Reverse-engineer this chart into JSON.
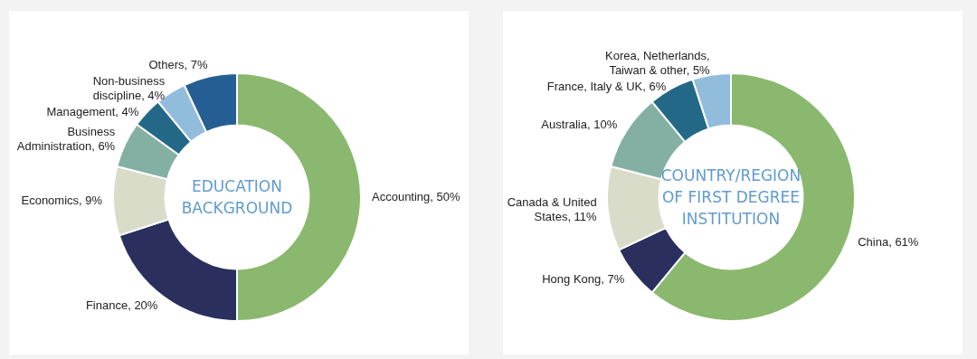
{
  "chart_data": [
    {
      "type": "donut",
      "title": "EDUCATION BACKGROUND",
      "categories": [
        "Accounting",
        "Finance",
        "Economics",
        "Business Administration",
        "Management",
        "Non-business discipline",
        "Others"
      ],
      "values": [
        50,
        20,
        9,
        6,
        4,
        4,
        7
      ],
      "value_labels": [
        "50%",
        "20%",
        "9%",
        "6%",
        "4%",
        "4%",
        "7%"
      ],
      "colors": [
        "#8ab86e",
        "#2a2f5e",
        "#d9dcc8",
        "#84b0a4",
        "#236987",
        "#92bcdc",
        "#245e93"
      ]
    },
    {
      "type": "donut",
      "title": "COUNTRY/REGION OF FIRST DEGREE INSTITUTION",
      "categories": [
        "China",
        "Hong Kong",
        "Canada & United States",
        "Australia",
        "France, Italy & UK",
        "Korea, Netherlands, Taiwan & other"
      ],
      "values": [
        61,
        7,
        11,
        10,
        6,
        5
      ],
      "value_labels": [
        "61%",
        "7%",
        "11%",
        "10%",
        "6%",
        "5%"
      ],
      "colors": [
        "#8ab86e",
        "#2a2f5e",
        "#d9dcc8",
        "#84b0a4",
        "#236987",
        "#92bcdc"
      ]
    }
  ]
}
